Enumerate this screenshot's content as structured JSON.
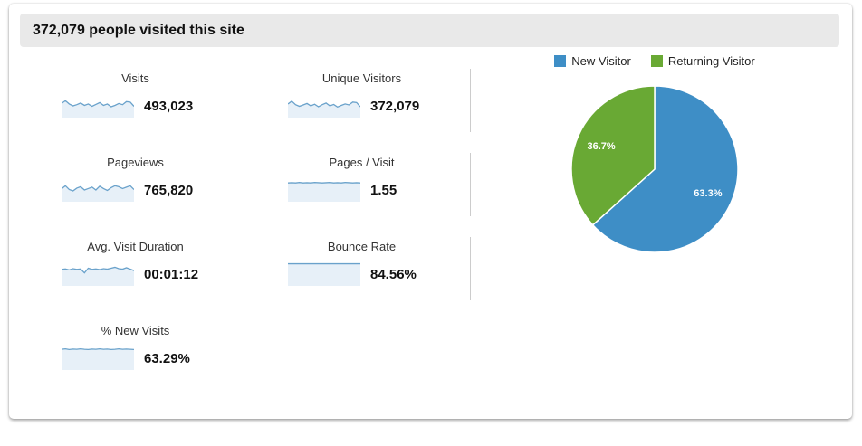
{
  "header": {
    "title": "372,079 people visited this site"
  },
  "metrics": [
    {
      "id": "visits",
      "label": "Visits",
      "value": "493,023",
      "sparkline": [
        0.6,
        0.72,
        0.58,
        0.5,
        0.55,
        0.62,
        0.52,
        0.58,
        0.48,
        0.56,
        0.64,
        0.52,
        0.58,
        0.46,
        0.52,
        0.6,
        0.55,
        0.68,
        0.66,
        0.48
      ]
    },
    {
      "id": "unique-visitors",
      "label": "Unique Visitors",
      "value": "372,079",
      "sparkline": [
        0.58,
        0.7,
        0.55,
        0.48,
        0.54,
        0.6,
        0.5,
        0.57,
        0.46,
        0.55,
        0.62,
        0.5,
        0.56,
        0.45,
        0.52,
        0.58,
        0.54,
        0.66,
        0.64,
        0.46
      ]
    },
    {
      "id": "pageviews",
      "label": "Pageviews",
      "value": "765,820",
      "sparkline": [
        0.55,
        0.68,
        0.52,
        0.46,
        0.58,
        0.64,
        0.5,
        0.56,
        0.62,
        0.5,
        0.66,
        0.56,
        0.48,
        0.6,
        0.68,
        0.64,
        0.56,
        0.62,
        0.68,
        0.52
      ]
    },
    {
      "id": "pages-per-visit",
      "label": "Pages / Visit",
      "value": "1.55",
      "sparkline": [
        0.8,
        0.81,
        0.8,
        0.82,
        0.8,
        0.81,
        0.8,
        0.82,
        0.81,
        0.8,
        0.81,
        0.82,
        0.8,
        0.81,
        0.8,
        0.82,
        0.81,
        0.8,
        0.81,
        0.8
      ]
    },
    {
      "id": "avg-visit-duration",
      "label": "Avg. Visit Duration",
      "value": "00:01:12",
      "sparkline": [
        0.7,
        0.72,
        0.68,
        0.73,
        0.7,
        0.72,
        0.55,
        0.75,
        0.7,
        0.72,
        0.69,
        0.73,
        0.71,
        0.75,
        0.79,
        0.73,
        0.71,
        0.77,
        0.71,
        0.65
      ]
    },
    {
      "id": "bounce-rate",
      "label": "Bounce Rate",
      "value": "84.56%",
      "sparkline": [
        0.94,
        0.94,
        0.94,
        0.94,
        0.94,
        0.94,
        0.94,
        0.94,
        0.94,
        0.94,
        0.94,
        0.94,
        0.94,
        0.94,
        0.94,
        0.94,
        0.94,
        0.94,
        0.94,
        0.94
      ]
    },
    {
      "id": "percent-new-visits",
      "label": "% New Visits",
      "value": "63.29%",
      "sparkline": [
        0.88,
        0.9,
        0.87,
        0.89,
        0.88,
        0.9,
        0.88,
        0.87,
        0.89,
        0.88,
        0.9,
        0.88,
        0.89,
        0.87,
        0.88,
        0.9,
        0.88,
        0.89,
        0.88,
        0.87
      ]
    }
  ],
  "chart_data": {
    "type": "pie",
    "labels": [
      "New Visitor",
      "Returning Visitor"
    ],
    "values": [
      63.3,
      36.7
    ],
    "slice_labels": [
      "63.3%",
      "36.7%"
    ],
    "colors": [
      "#3e8ec6",
      "#69a934"
    ],
    "legend_position": "top",
    "start_angle_deg": 0,
    "direction": "clockwise"
  },
  "colors": {
    "spark_line": "#6aa2cb",
    "spark_fill": "#e7f0f8",
    "header_bg": "#e9e9e9",
    "divider": "#cccccc"
  }
}
